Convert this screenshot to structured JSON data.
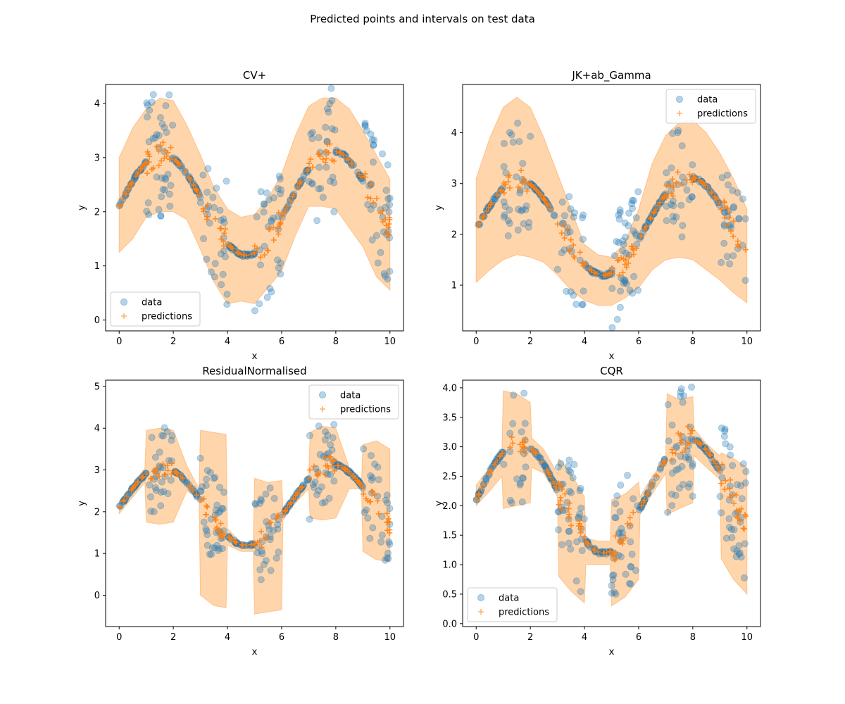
{
  "figure": {
    "title": "Predicted points and intervals on test data"
  },
  "colors": {
    "data": "#1f77b4",
    "predictions": "#ff7f0e",
    "band": "#ffbb78"
  },
  "chart_data": [
    {
      "type": "scatter",
      "title": "CV+",
      "xlabel": "x",
      "ylabel": "y",
      "xlim": [
        -0.5,
        10.5
      ],
      "ylim": [
        -0.2,
        4.35
      ],
      "xticks": [
        0,
        2,
        4,
        6,
        8,
        10
      ],
      "yticks": [
        0,
        1,
        2,
        3,
        4
      ],
      "ytick_labels": [
        "0",
        "1",
        "2",
        "3",
        "4"
      ],
      "legend": {
        "loc": "lower-left",
        "entries": [
          "data",
          "predictions"
        ]
      },
      "band": {
        "x": [
          0,
          0.5,
          1,
          1.5,
          2,
          2.5,
          3,
          3.5,
          4,
          4.5,
          5,
          5.5,
          6,
          6.5,
          7,
          7.5,
          8,
          8.5,
          9,
          9.5,
          10
        ],
        "lower": [
          1.25,
          1.5,
          1.9,
          2.0,
          2.0,
          1.85,
          1.3,
          0.7,
          0.3,
          0.35,
          0.3,
          0.6,
          0.9,
          1.55,
          2.1,
          2.1,
          2.05,
          1.7,
          1.35,
          0.8,
          0.55
        ],
        "upper": [
          3.0,
          3.55,
          3.9,
          4.1,
          4.05,
          3.6,
          3.05,
          2.45,
          2.05,
          1.9,
          1.95,
          2.25,
          2.7,
          3.4,
          3.95,
          4.1,
          4.1,
          3.9,
          3.5,
          3.05,
          2.6
        ]
      },
      "spread": {
        "high": 1.15,
        "low": 0.55,
        "noise": 0.8
      }
    },
    {
      "type": "scatter",
      "title": "JK+ab_Gamma",
      "xlabel": "x",
      "ylabel": "y",
      "xlim": [
        -0.5,
        10.5
      ],
      "ylim": [
        0.1,
        4.95
      ],
      "xticks": [
        0,
        2,
        4,
        6,
        8,
        10
      ],
      "yticks": [
        1,
        2,
        3,
        4
      ],
      "ytick_labels": [
        "1",
        "2",
        "3",
        "4"
      ],
      "legend": {
        "loc": "upper-right",
        "entries": [
          "data",
          "predictions"
        ]
      },
      "band": {
        "x": [
          0,
          0.5,
          1,
          1.5,
          2,
          2.5,
          3,
          3.5,
          4,
          4.5,
          5,
          5.5,
          6,
          6.5,
          7,
          7.5,
          8,
          8.5,
          9,
          9.5,
          10
        ],
        "lower": [
          1.05,
          1.3,
          1.5,
          1.6,
          1.55,
          1.45,
          1.2,
          0.9,
          0.7,
          0.6,
          0.6,
          0.75,
          0.95,
          1.3,
          1.5,
          1.55,
          1.5,
          1.3,
          1.1,
          0.85,
          0.65
        ],
        "upper": [
          3.1,
          3.9,
          4.5,
          4.7,
          4.5,
          3.9,
          3.2,
          2.5,
          1.8,
          1.6,
          1.55,
          1.85,
          2.5,
          3.4,
          3.95,
          4.2,
          4.25,
          4.0,
          3.6,
          3.1,
          2.5
        ]
      },
      "spread": {
        "high": 1.15,
        "low": 0.55,
        "noise": 0.8
      }
    },
    {
      "type": "scatter",
      "title": "ResidualNormalised",
      "xlabel": "x",
      "ylabel": "y",
      "xlim": [
        -0.5,
        10.5
      ],
      "ylim": [
        -0.75,
        5.15
      ],
      "xticks": [
        0,
        2,
        4,
        6,
        8,
        10
      ],
      "yticks": [
        0,
        1,
        2,
        3,
        4,
        5
      ],
      "ytick_labels": [
        "0",
        "1",
        "2",
        "3",
        "4",
        "5"
      ],
      "legend": {
        "loc": "upper-right",
        "entries": [
          "data",
          "predictions"
        ]
      },
      "band": {
        "x": [
          0,
          0.5,
          0.95,
          1.0,
          1.5,
          2.0,
          2.5,
          2.95,
          3.0,
          3.5,
          3.95,
          4.0,
          4.5,
          4.95,
          5.0,
          5.5,
          6.0,
          6.05,
          6.5,
          7.0,
          7.05,
          7.5,
          8.0,
          8.5,
          8.95,
          9.0,
          9.5,
          10
        ],
        "lower": [
          1.95,
          2.35,
          2.7,
          1.75,
          1.7,
          1.75,
          2.5,
          2.3,
          0.0,
          -0.25,
          -0.3,
          1.2,
          1.05,
          1.05,
          -0.45,
          -0.4,
          -0.35,
          1.8,
          2.2,
          2.55,
          1.85,
          1.8,
          1.85,
          2.55,
          2.55,
          1.05,
          0.85,
          0.8
        ],
        "upper": [
          2.25,
          2.65,
          3.05,
          3.95,
          4.0,
          3.95,
          3.1,
          2.55,
          3.95,
          3.9,
          3.85,
          1.6,
          1.25,
          1.2,
          2.8,
          2.7,
          2.75,
          2.05,
          2.45,
          2.8,
          3.9,
          4.05,
          4.0,
          3.05,
          2.75,
          3.6,
          3.7,
          3.5
        ]
      },
      "spread": {
        "high": 1.05,
        "low": 0.6,
        "noise": 0.8
      }
    },
    {
      "type": "scatter",
      "title": "CQR",
      "xlabel": "x",
      "ylabel": "y",
      "xlim": [
        -0.5,
        10.5
      ],
      "ylim": [
        -0.05,
        4.13
      ],
      "xticks": [
        0,
        2,
        4,
        6,
        8,
        10
      ],
      "yticks": [
        0.0,
        0.5,
        1.0,
        1.5,
        2.0,
        2.5,
        3.0,
        3.5,
        4.0
      ],
      "ytick_labels": [
        "0.0",
        "0.5",
        "1.0",
        "1.5",
        "2.0",
        "2.5",
        "3.0",
        "3.5",
        "4.0"
      ],
      "legend": {
        "loc": "lower-left",
        "entries": [
          "data",
          "predictions"
        ]
      },
      "band": {
        "x": [
          0,
          0.5,
          0.95,
          1.0,
          1.5,
          2.0,
          2.05,
          2.5,
          3.0,
          3.05,
          3.5,
          4.0,
          4.05,
          4.5,
          4.95,
          5.0,
          5.5,
          6.0,
          6.05,
          6.5,
          7.0,
          7.05,
          7.5,
          8.0,
          8.05,
          8.5,
          9.0,
          9.05,
          9.5,
          10
        ],
        "lower": [
          2.0,
          2.25,
          2.5,
          1.95,
          2.0,
          2.05,
          2.65,
          2.55,
          2.15,
          0.8,
          0.55,
          0.35,
          1.0,
          1.0,
          1.0,
          0.3,
          0.45,
          0.75,
          1.85,
          2.2,
          2.55,
          1.85,
          1.95,
          2.05,
          2.85,
          2.65,
          2.45,
          1.1,
          0.75,
          0.5
        ],
        "upper": [
          2.35,
          2.65,
          2.95,
          3.95,
          3.9,
          3.75,
          3.15,
          2.95,
          2.55,
          2.8,
          2.55,
          2.15,
          1.45,
          1.4,
          1.4,
          2.1,
          2.2,
          2.4,
          2.15,
          2.5,
          2.8,
          3.9,
          3.8,
          3.85,
          3.3,
          3.05,
          2.85,
          2.9,
          2.8,
          2.65
        ]
      },
      "spread": {
        "high": 1.0,
        "low": 0.6,
        "noise": 0.8
      }
    }
  ]
}
